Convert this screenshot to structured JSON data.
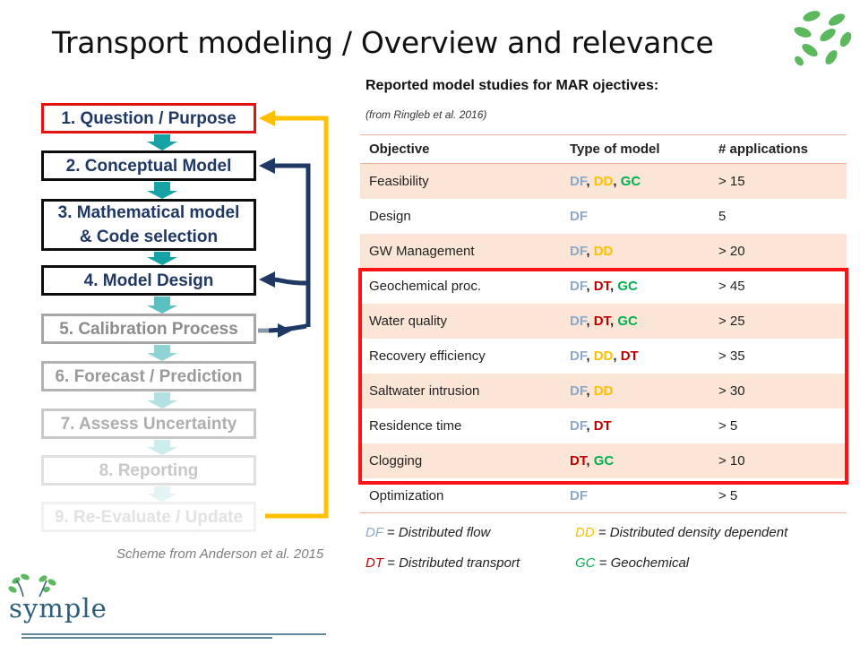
{
  "slide": {
    "title": "Transport modeling / Overview and relevance"
  },
  "flow": {
    "steps": [
      {
        "label": "1. Question / Purpose"
      },
      {
        "label": "2. Conceptual Model"
      },
      {
        "label_line1": "3. Mathematical model",
        "label_line2": "& Code selection"
      },
      {
        "label": "4. Model Design"
      },
      {
        "label": "5. Calibration Process"
      },
      {
        "label": "6. Forecast / Prediction"
      },
      {
        "label": "7. Assess Uncertainty"
      },
      {
        "label": "8. Reporting"
      },
      {
        "label": "9. Re-Evaluate / Update"
      }
    ],
    "credit": "Scheme from Anderson et al. 2015"
  },
  "table": {
    "title": "Reported model studies for MAR ojectives:",
    "source": "(from Ringleb et al. 2016)",
    "headers": [
      "Objective",
      "Type of model",
      "# applications"
    ],
    "rows": [
      {
        "objective": "Feasibility",
        "types": [
          "DF",
          "DD",
          "GC"
        ],
        "applications": "> 15"
      },
      {
        "objective": "Design",
        "types": [
          "DF"
        ],
        "applications": "5"
      },
      {
        "objective": "GW Management",
        "types": [
          "DF",
          "DD"
        ],
        "applications": "> 20"
      },
      {
        "objective": "Geochemical proc.",
        "types": [
          "DF",
          "DT",
          "GC"
        ],
        "applications": "> 45"
      },
      {
        "objective": "Water quality",
        "types": [
          "DF",
          "DT",
          "GC"
        ],
        "applications": "> 25"
      },
      {
        "objective": "Recovery efficiency",
        "types": [
          "DF",
          "DD",
          "DT"
        ],
        "applications": "> 35"
      },
      {
        "objective": "Saltwater intrusion",
        "types": [
          "DF",
          "DD"
        ],
        "applications": "> 30"
      },
      {
        "objective": "Residence time",
        "types": [
          "DF",
          "DT"
        ],
        "applications": "> 5"
      },
      {
        "objective": "Clogging",
        "types": [
          "DT",
          "GC"
        ],
        "applications": "> 10"
      },
      {
        "objective": "Optimization",
        "types": [
          "DF"
        ],
        "applications": "> 5"
      }
    ]
  },
  "legend": {
    "DF": {
      "abbr": "DF",
      "text": " = Distributed flow",
      "color": "#8ea9c8"
    },
    "DD": {
      "abbr": "DD",
      "text": " = Distributed density dependent",
      "color": "#ffc000"
    },
    "DT": {
      "abbr": "DT",
      "text": " = Distributed transport",
      "color": "#c00000"
    },
    "GC": {
      "abbr": "GC",
      "text": " = Geochemical",
      "color": "#00b050"
    }
  },
  "logo": {
    "text": "symple"
  },
  "colors": {
    "highlight_frame": "#ff1313",
    "feedback_arrow_yellow": "#ffc000",
    "feedback_arrow_navy": "#1f3864",
    "step_connector": "#17a2a6",
    "table_alt_row": "#fbe5d6"
  }
}
